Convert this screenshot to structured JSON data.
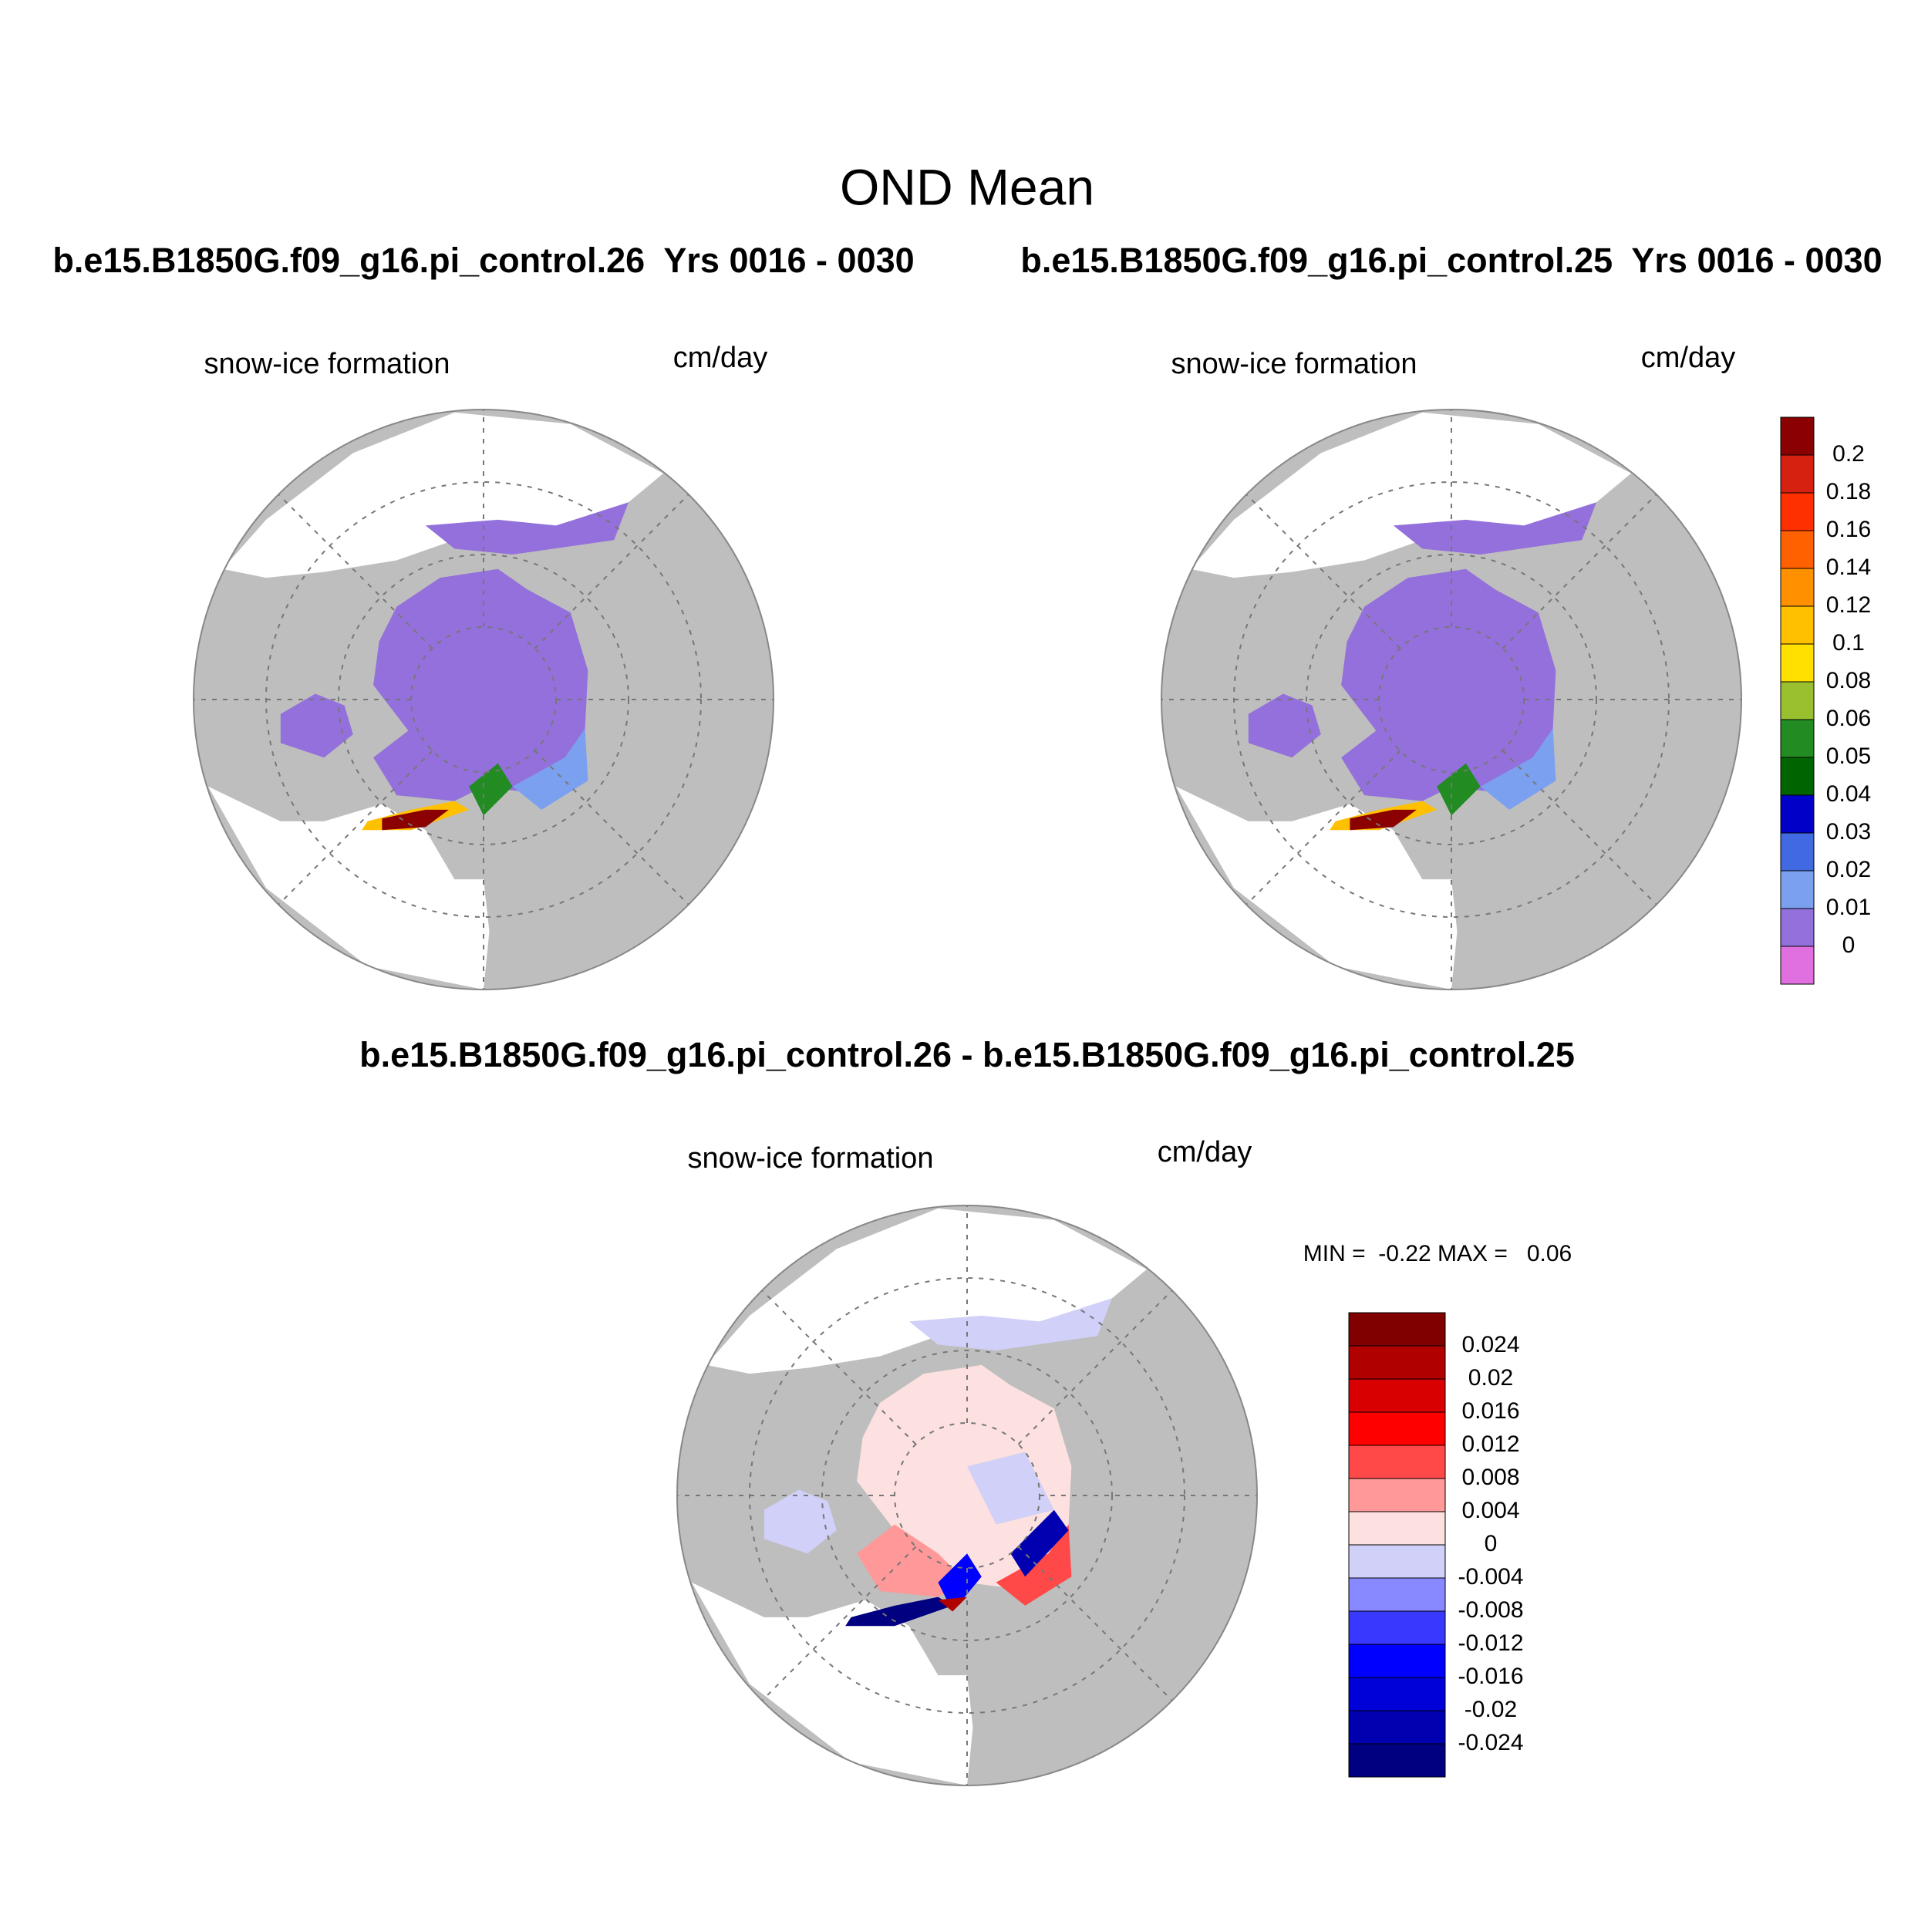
{
  "title": "OND Mean",
  "panels": [
    {
      "case": "b.e15.B1850G.f09_g16.pi_control.26  Yrs 0016 - 0030",
      "variable": "snow-ice formation",
      "units": "cm/day"
    },
    {
      "case": "b.e15.B1850G.f09_g16.pi_control.25  Yrs 0016 - 0030",
      "variable": "snow-ice formation",
      "units": "cm/day"
    },
    {
      "case": "b.e15.B1850G.f09_g16.pi_control.26 - b.e15.B1850G.f09_g16.pi_control.25",
      "variable": "snow-ice formation",
      "units": "cm/day",
      "stats": "MIN =  -0.22 MAX =   0.06"
    }
  ],
  "colorbars": [
    {
      "levels": [
        0.2,
        0.18,
        0.16,
        0.14,
        0.12,
        0.1,
        0.08,
        0.06,
        0.05,
        0.04,
        0.03,
        0.02,
        0.01,
        0
      ],
      "colors": [
        "#8b0000",
        "#d62010",
        "#ff3000",
        "#ff6000",
        "#ff9000",
        "#ffc000",
        "#ffe000",
        "#9ac030",
        "#228b22",
        "#006400",
        "#0000c8",
        "#4169e1",
        "#7ba0f0",
        "#9370db",
        "#e070e0"
      ]
    },
    {
      "levels": [
        0.024,
        0.02,
        0.016,
        0.012,
        0.008,
        0.004,
        0,
        -0.004,
        -0.008,
        -0.012,
        -0.016,
        -0.02,
        -0.024
      ],
      "colors": [
        "#800000",
        "#b00000",
        "#d80000",
        "#ff0000",
        "#ff4848",
        "#ff9898",
        "#fde0e0",
        "#d0d0f8",
        "#8888ff",
        "#3838ff",
        "#0000ff",
        "#0000d8",
        "#0000b0",
        "#000080"
      ]
    }
  ]
}
